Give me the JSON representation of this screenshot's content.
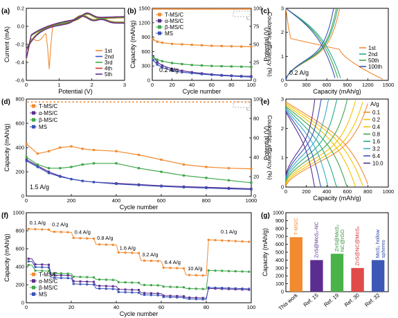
{
  "colors": {
    "axis": "#000000",
    "orange": "#f28a30",
    "purple": "#5b2d90",
    "green": "#3ea64a",
    "blue": "#3a52b8",
    "red": "#d62c2c",
    "yellow": "#f2c200",
    "cyan": "#33aac8",
    "teal": "#22aa88",
    "bar_green": "#49b34a",
    "bar_red": "#e04a48",
    "bar_blue": "#3c58b4",
    "gray": "#9a9a9a",
    "bar_text_orange": "#f28a30",
    "bar_text_purple": "#5b2d90",
    "bar_text_green": "#2f8f3a",
    "bar_text_red": "#d6302e",
    "bar_text_blue": "#2b4aa8"
  },
  "chart_data": [
    {
      "id": "a",
      "panel_label": "(a)",
      "type": "line",
      "xlabel": "Potential (V)",
      "ylabel": "Current (mA)",
      "xlim": [
        0,
        3
      ],
      "ylim": [
        -0.6,
        0.2
      ],
      "xticks": [
        "0",
        "1",
        "2",
        "3"
      ],
      "yticks": [
        "-0.6",
        "-0.4",
        "-0.2",
        "0.0",
        "0.2"
      ],
      "series": [
        {
          "name": "1st",
          "color_key": "orange"
        },
        {
          "name": "2nd",
          "color_key": "blue"
        },
        {
          "name": "3rd",
          "color_key": "green"
        },
        {
          "name": "4th",
          "color_key": "red"
        },
        {
          "name": "5th",
          "color_key": "purple"
        }
      ],
      "legend_position": "bottom-right"
    },
    {
      "id": "b",
      "panel_label": "(b)",
      "type": "scatter",
      "xlabel": "Cycle number",
      "ylabel": "Capacity (mAh/g)",
      "y2label": "Coulombic efficiency (%)",
      "xlim": [
        0,
        100
      ],
      "ylim": [
        0,
        1500
      ],
      "y2lim": [
        0,
        100
      ],
      "xticks": [
        "0",
        "20",
        "40",
        "60",
        "80",
        "100"
      ],
      "yticks": [
        "0",
        "300",
        "600",
        "900",
        "1200",
        "1500"
      ],
      "y2ticks": [
        "0",
        "25",
        "50",
        "75",
        "100"
      ],
      "annotation": "0.2 A/g",
      "series": [
        {
          "name": "T-MS/C",
          "color_key": "orange",
          "x": [
            1,
            5,
            10,
            20,
            30,
            40,
            50,
            60,
            70,
            80,
            90,
            100
          ],
          "values": [
            850,
            805,
            785,
            760,
            750,
            740,
            730,
            720,
            715,
            710,
            705,
            700
          ]
        },
        {
          "name": "α-MS/C",
          "color_key": "purple",
          "x": [
            1,
            5,
            10,
            20,
            30,
            40,
            50,
            60,
            70,
            80,
            90,
            100
          ],
          "values": [
            500,
            380,
            310,
            240,
            200,
            170,
            145,
            125,
            110,
            100,
            90,
            85
          ]
        },
        {
          "name": "β-MS/C",
          "color_key": "green",
          "x": [
            1,
            5,
            10,
            20,
            30,
            40,
            50,
            60,
            70,
            80,
            90,
            100
          ],
          "values": [
            480,
            430,
            400,
            360,
            340,
            320,
            310,
            300,
            295,
            290,
            285,
            280
          ]
        },
        {
          "name": "MS",
          "color_key": "blue",
          "x": [
            1,
            5,
            10,
            20,
            30,
            40,
            50,
            60,
            70,
            80,
            90,
            100
          ],
          "values": [
            420,
            330,
            270,
            200,
            170,
            150,
            130,
            115,
            100,
            90,
            80,
            70
          ]
        }
      ],
      "legend_position": "top-left"
    },
    {
      "id": "c",
      "panel_label": "(c)",
      "type": "line",
      "xlabel": "Capacity (mAh/g)",
      "ylabel": "Potential (V)",
      "xlim": [
        0,
        1500
      ],
      "ylim": [
        0,
        3
      ],
      "xticks": [
        "0",
        "300",
        "600",
        "900",
        "1200",
        "1500"
      ],
      "yticks": [
        "0",
        "1",
        "2",
        "3"
      ],
      "annotation": "0.2 A/g",
      "series": [
        {
          "name": "1st",
          "color_key": "orange",
          "discharge_end": 1420,
          "charge_end": 790
        },
        {
          "name": "2nd",
          "color_key": "teal",
          "discharge_end": 800,
          "charge_end": 760
        },
        {
          "name": "50th",
          "color_key": "green",
          "discharge_end": 760,
          "charge_end": 740
        },
        {
          "name": "100th",
          "color_key": "blue",
          "discharge_end": 720,
          "charge_end": 700
        }
      ],
      "legend_position": "bottom-right"
    },
    {
      "id": "d",
      "panel_label": "(d)",
      "type": "scatter",
      "xlabel": "Cycle number",
      "ylabel": "Capacity (mAh/g)",
      "y2label": "Coulombic efficiency (%)",
      "xlim": [
        0,
        1000
      ],
      "ylim": [
        0,
        800
      ],
      "y2lim": [
        0,
        100
      ],
      "xticks": [
        "0",
        "200",
        "400",
        "600",
        "800",
        "1000"
      ],
      "yticks": [
        "0",
        "200",
        "400",
        "600",
        "800"
      ],
      "y2ticks": [
        "0",
        "20",
        "40",
        "60",
        "80",
        "100"
      ],
      "annotation": "1.5 A/g",
      "series": [
        {
          "name": "T-MS/C",
          "color_key": "orange",
          "x": [
            1,
            50,
            100,
            150,
            200,
            250,
            300,
            400,
            500,
            600,
            700,
            800,
            900,
            1000
          ],
          "values": [
            430,
            350,
            370,
            400,
            410,
            390,
            380,
            370,
            340,
            300,
            260,
            240,
            230,
            225
          ]
        },
        {
          "name": "α-MS/C",
          "color_key": "purple",
          "x": [
            1,
            50,
            100,
            150,
            200,
            250,
            300,
            400,
            500,
            600,
            700,
            800,
            900,
            1000
          ],
          "values": [
            300,
            250,
            200,
            165,
            140,
            125,
            115,
            105,
            95,
            85,
            78,
            72,
            66,
            60
          ]
        },
        {
          "name": "β-MS/C",
          "color_key": "green",
          "x": [
            1,
            50,
            100,
            150,
            200,
            250,
            300,
            400,
            500,
            600,
            700,
            800,
            900,
            1000
          ],
          "values": [
            320,
            260,
            230,
            230,
            240,
            260,
            270,
            270,
            230,
            200,
            170,
            150,
            130,
            110
          ]
        },
        {
          "name": "MS",
          "color_key": "blue",
          "x": [
            1,
            50,
            100,
            150,
            200,
            250,
            300,
            400,
            500,
            600,
            700,
            800,
            900,
            1000
          ],
          "values": [
            290,
            240,
            190,
            160,
            140,
            125,
            115,
            100,
            90,
            80,
            72,
            66,
            60,
            55
          ]
        }
      ],
      "legend_position": "top-left"
    },
    {
      "id": "e",
      "panel_label": "(e)",
      "type": "line",
      "xlabel": "Capacity (mAh/g)",
      "ylabel": "Potential (V)",
      "xlim": [
        0,
        1000
      ],
      "ylim": [
        0,
        3
      ],
      "xticks": [
        "0",
        "200",
        "400",
        "600",
        "800",
        "1000"
      ],
      "yticks": [
        "0",
        "1",
        "2",
        "3"
      ],
      "legend_title": "A/g",
      "series": [
        {
          "name": "0.1",
          "color_key": "orange",
          "capacity": 800
        },
        {
          "name": "0.2",
          "color_key": "yellow",
          "capacity": 750
        },
        {
          "name": "0.4",
          "color_key": "yellow",
          "capacity": 680
        },
        {
          "name": "0.8",
          "color_key": "green",
          "capacity": 600
        },
        {
          "name": "1.6",
          "color_key": "teal",
          "capacity": 500
        },
        {
          "name": "3.2",
          "color_key": "cyan",
          "capacity": 420
        },
        {
          "name": "6.4",
          "color_key": "blue",
          "capacity": 350
        },
        {
          "name": "10.0",
          "color_key": "purple",
          "capacity": 290
        }
      ],
      "legend_position": "right"
    },
    {
      "id": "f",
      "panel_label": "(f)",
      "type": "scatter",
      "xlabel": "Cycle number",
      "ylabel": "Capacity (mAh/g)",
      "xlim": [
        0,
        100
      ],
      "ylim": [
        0,
        1000
      ],
      "xticks": [
        "0",
        "20",
        "40",
        "60",
        "80",
        "100"
      ],
      "yticks": [
        "0",
        "200",
        "400",
        "600",
        "800",
        "1000"
      ],
      "rate_labels": [
        {
          "text": "0.1 A/g",
          "x": 5,
          "y": 870
        },
        {
          "text": "0.2 A/g",
          "x": 15,
          "y": 850
        },
        {
          "text": "0.4 A/g",
          "x": 25,
          "y": 765
        },
        {
          "text": "0.8 A/g",
          "x": 35,
          "y": 700
        },
        {
          "text": "1.6 A/g",
          "x": 45,
          "y": 590
        },
        {
          "text": "3.2 A/g",
          "x": 55,
          "y": 515
        },
        {
          "text": "6.4 A/g",
          "x": 65,
          "y": 430
        },
        {
          "text": "10 A/g",
          "x": 75,
          "y": 360
        },
        {
          "text": "0.1 A/g",
          "x": 90,
          "y": 770
        }
      ],
      "series": [
        {
          "name": "T-MS/C",
          "color_key": "orange",
          "steps": [
            820,
            790,
            720,
            650,
            560,
            470,
            390,
            310,
            700
          ]
        },
        {
          "name": "α-MS/C",
          "color_key": "purple",
          "steps": [
            430,
            310,
            240,
            190,
            150,
            110,
            80,
            60,
            160
          ]
        },
        {
          "name": "β-MS/C",
          "color_key": "green",
          "steps": [
            360,
            330,
            290,
            260,
            230,
            200,
            180,
            160,
            360
          ]
        },
        {
          "name": "MS",
          "color_key": "blue",
          "steps": [
            400,
            280,
            210,
            160,
            120,
            90,
            65,
            45,
            170
          ]
        }
      ],
      "legend_position": "bottom-left"
    },
    {
      "id": "g",
      "panel_label": "(g)",
      "type": "bar",
      "ylabel": "Capacity (mAh/g)",
      "ylim": [
        0,
        1000
      ],
      "yticks": [
        "0",
        "100",
        "200",
        "300",
        "400",
        "500",
        "600",
        "700",
        "800",
        "900",
        "1000"
      ],
      "categories": [
        "This work",
        "Ref. 15",
        "Ref. 19",
        "Ref. 30",
        "Ref. 32"
      ],
      "values": [
        690,
        400,
        480,
        300,
        400
      ],
      "bar_labels": [
        {
          "line1": "T-MS/C",
          "line2": "",
          "color_key": "bar_text_orange",
          "bar_color_key": "orange"
        },
        {
          "line1": "ZnS@MoS₂-NC",
          "line2": "",
          "color_key": "bar_text_purple",
          "bar_color_key": "purple"
        },
        {
          "line1": "ZnS@MoS₂",
          "line2": "NC@rGO",
          "color_key": "bar_text_green",
          "bar_color_key": "bar_green"
        },
        {
          "line1": "ZnS@NC@MoS₂",
          "line2": "",
          "color_key": "bar_text_red",
          "bar_color_key": "bar_red"
        },
        {
          "line1": "MoS₂ hollow",
          "line2": "spheres",
          "color_key": "bar_text_blue",
          "bar_color_key": "bar_blue"
        }
      ]
    }
  ]
}
